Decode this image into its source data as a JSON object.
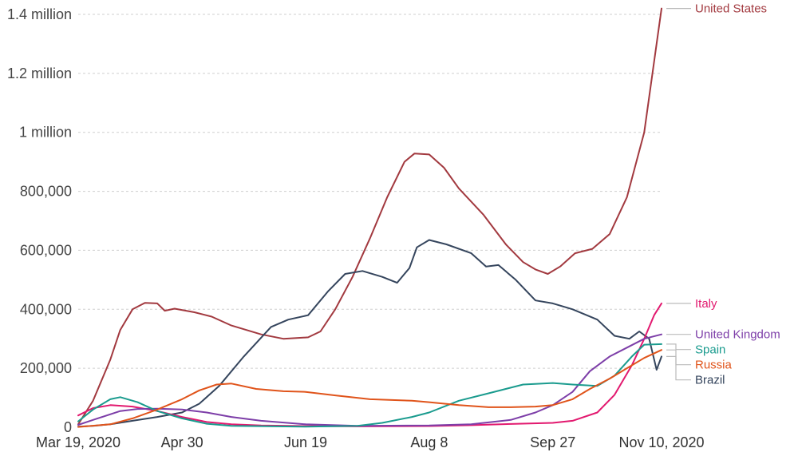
{
  "chart_data": {
    "type": "line",
    "title": "",
    "xlabel": "",
    "ylabel": "",
    "x_start": "2020-03-19",
    "x_end": "2020-11-10",
    "ylim": [
      0,
      1400000
    ],
    "grid": true,
    "yticks": [
      {
        "value": 0,
        "label": "0"
      },
      {
        "value": 200000,
        "label": "200,000"
      },
      {
        "value": 400000,
        "label": "400,000"
      },
      {
        "value": 600000,
        "label": "600,000"
      },
      {
        "value": 800000,
        "label": "800,000"
      },
      {
        "value": 1000000,
        "label": "1 million"
      },
      {
        "value": 1200000,
        "label": "1.2 million"
      },
      {
        "value": 1400000,
        "label": "1.4 million"
      }
    ],
    "xticks": [
      {
        "value": "2020-03-19",
        "label": "Mar 19, 2020"
      },
      {
        "value": "2020-04-30",
        "label": "Apr 30"
      },
      {
        "value": "2020-06-19",
        "label": "Jun 19"
      },
      {
        "value": "2020-08-08",
        "label": "Aug 8"
      },
      {
        "value": "2020-09-27",
        "label": "Sep 27"
      },
      {
        "value": "2020-11-10",
        "label": "Nov 10, 2020"
      }
    ],
    "series": [
      {
        "name": "United States",
        "color": "#a2393f",
        "points": [
          [
            "2020-03-19",
            10000
          ],
          [
            "2020-03-25",
            90000
          ],
          [
            "2020-04-01",
            230000
          ],
          [
            "2020-04-05",
            330000
          ],
          [
            "2020-04-10",
            400000
          ],
          [
            "2020-04-15",
            422000
          ],
          [
            "2020-04-20",
            420000
          ],
          [
            "2020-04-23",
            395000
          ],
          [
            "2020-04-27",
            402000
          ],
          [
            "2020-05-05",
            390000
          ],
          [
            "2020-05-12",
            375000
          ],
          [
            "2020-05-20",
            345000
          ],
          [
            "2020-06-01",
            315000
          ],
          [
            "2020-06-10",
            300000
          ],
          [
            "2020-06-20",
            305000
          ],
          [
            "2020-06-25",
            325000
          ],
          [
            "2020-07-01",
            400000
          ],
          [
            "2020-07-08",
            510000
          ],
          [
            "2020-07-15",
            640000
          ],
          [
            "2020-07-22",
            780000
          ],
          [
            "2020-07-29",
            900000
          ],
          [
            "2020-08-02",
            928000
          ],
          [
            "2020-08-08",
            925000
          ],
          [
            "2020-08-14",
            880000
          ],
          [
            "2020-08-20",
            810000
          ],
          [
            "2020-08-30",
            720000
          ],
          [
            "2020-09-08",
            620000
          ],
          [
            "2020-09-15",
            560000
          ],
          [
            "2020-09-20",
            535000
          ],
          [
            "2020-09-25",
            520000
          ],
          [
            "2020-09-30",
            545000
          ],
          [
            "2020-10-06",
            590000
          ],
          [
            "2020-10-13",
            605000
          ],
          [
            "2020-10-20",
            655000
          ],
          [
            "2020-10-27",
            780000
          ],
          [
            "2020-11-03",
            1000000
          ],
          [
            "2020-11-08",
            1300000
          ],
          [
            "2020-11-10",
            1420000
          ]
        ]
      },
      {
        "name": "Brazil",
        "color": "#35455d",
        "points": [
          [
            "2020-03-19",
            2000
          ],
          [
            "2020-03-25",
            5000
          ],
          [
            "2020-04-01",
            10000
          ],
          [
            "2020-04-10",
            22000
          ],
          [
            "2020-04-20",
            35000
          ],
          [
            "2020-04-30",
            50000
          ],
          [
            "2020-05-07",
            80000
          ],
          [
            "2020-05-15",
            140000
          ],
          [
            "2020-05-25",
            240000
          ],
          [
            "2020-06-05",
            340000
          ],
          [
            "2020-06-12",
            365000
          ],
          [
            "2020-06-20",
            380000
          ],
          [
            "2020-06-28",
            460000
          ],
          [
            "2020-07-05",
            520000
          ],
          [
            "2020-07-12",
            530000
          ],
          [
            "2020-07-20",
            510000
          ],
          [
            "2020-07-26",
            490000
          ],
          [
            "2020-07-31",
            540000
          ],
          [
            "2020-08-03",
            610000
          ],
          [
            "2020-08-08",
            635000
          ],
          [
            "2020-08-15",
            620000
          ],
          [
            "2020-08-25",
            590000
          ],
          [
            "2020-08-31",
            545000
          ],
          [
            "2020-09-05",
            550000
          ],
          [
            "2020-09-12",
            500000
          ],
          [
            "2020-09-20",
            430000
          ],
          [
            "2020-09-27",
            420000
          ],
          [
            "2020-10-05",
            400000
          ],
          [
            "2020-10-15",
            365000
          ],
          [
            "2020-10-22",
            310000
          ],
          [
            "2020-10-28",
            300000
          ],
          [
            "2020-11-01",
            325000
          ],
          [
            "2020-11-05",
            300000
          ],
          [
            "2020-11-08",
            195000
          ],
          [
            "2020-11-10",
            240000
          ]
        ]
      },
      {
        "name": "Italy",
        "color": "#e2196f",
        "points": [
          [
            "2020-03-19",
            40000
          ],
          [
            "2020-03-25",
            65000
          ],
          [
            "2020-04-01",
            75000
          ],
          [
            "2020-04-10",
            70000
          ],
          [
            "2020-04-20",
            55000
          ],
          [
            "2020-04-30",
            35000
          ],
          [
            "2020-05-10",
            18000
          ],
          [
            "2020-05-20",
            10000
          ],
          [
            "2020-06-01",
            6000
          ],
          [
            "2020-06-19",
            4000
          ],
          [
            "2020-07-10",
            3000
          ],
          [
            "2020-08-08",
            4000
          ],
          [
            "2020-08-25",
            7000
          ],
          [
            "2020-09-10",
            11000
          ],
          [
            "2020-09-27",
            15000
          ],
          [
            "2020-10-05",
            22000
          ],
          [
            "2020-10-15",
            50000
          ],
          [
            "2020-10-22",
            110000
          ],
          [
            "2020-10-29",
            210000
          ],
          [
            "2020-11-03",
            300000
          ],
          [
            "2020-11-07",
            380000
          ],
          [
            "2020-11-10",
            420000
          ]
        ]
      },
      {
        "name": "United Kingdom",
        "color": "#7d3ea8",
        "points": [
          [
            "2020-03-19",
            8000
          ],
          [
            "2020-03-25",
            25000
          ],
          [
            "2020-04-05",
            55000
          ],
          [
            "2020-04-12",
            62000
          ],
          [
            "2020-04-20",
            63000
          ],
          [
            "2020-04-30",
            60000
          ],
          [
            "2020-05-10",
            50000
          ],
          [
            "2020-05-20",
            35000
          ],
          [
            "2020-06-01",
            22000
          ],
          [
            "2020-06-19",
            10000
          ],
          [
            "2020-07-10",
            5000
          ],
          [
            "2020-08-08",
            6000
          ],
          [
            "2020-08-25",
            10000
          ],
          [
            "2020-09-10",
            25000
          ],
          [
            "2020-09-20",
            50000
          ],
          [
            "2020-09-27",
            75000
          ],
          [
            "2020-10-05",
            120000
          ],
          [
            "2020-10-12",
            190000
          ],
          [
            "2020-10-20",
            240000
          ],
          [
            "2020-10-27",
            270000
          ],
          [
            "2020-11-03",
            300000
          ],
          [
            "2020-11-10",
            315000
          ]
        ]
      },
      {
        "name": "Spain",
        "color": "#1a9b8e",
        "points": [
          [
            "2020-03-19",
            20000
          ],
          [
            "2020-03-25",
            60000
          ],
          [
            "2020-04-01",
            95000
          ],
          [
            "2020-04-05",
            102000
          ],
          [
            "2020-04-12",
            85000
          ],
          [
            "2020-04-20",
            55000
          ],
          [
            "2020-04-30",
            30000
          ],
          [
            "2020-05-10",
            12000
          ],
          [
            "2020-05-20",
            5000
          ],
          [
            "2020-06-19",
            2000
          ],
          [
            "2020-07-10",
            5000
          ],
          [
            "2020-07-20",
            15000
          ],
          [
            "2020-08-01",
            35000
          ],
          [
            "2020-08-08",
            50000
          ],
          [
            "2020-08-20",
            90000
          ],
          [
            "2020-09-01",
            115000
          ],
          [
            "2020-09-15",
            145000
          ],
          [
            "2020-09-27",
            150000
          ],
          [
            "2020-10-05",
            145000
          ],
          [
            "2020-10-15",
            140000
          ],
          [
            "2020-10-22",
            175000
          ],
          [
            "2020-10-29",
            240000
          ],
          [
            "2020-11-03",
            280000
          ],
          [
            "2020-11-10",
            282000
          ]
        ]
      },
      {
        "name": "Russia",
        "color": "#e0541b",
        "points": [
          [
            "2020-03-19",
            1000
          ],
          [
            "2020-04-01",
            10000
          ],
          [
            "2020-04-10",
            30000
          ],
          [
            "2020-04-20",
            60000
          ],
          [
            "2020-04-30",
            95000
          ],
          [
            "2020-05-07",
            125000
          ],
          [
            "2020-05-14",
            145000
          ],
          [
            "2020-05-20",
            148000
          ],
          [
            "2020-05-30",
            130000
          ],
          [
            "2020-06-10",
            122000
          ],
          [
            "2020-06-19",
            120000
          ],
          [
            "2020-07-01",
            108000
          ],
          [
            "2020-07-15",
            95000
          ],
          [
            "2020-08-01",
            90000
          ],
          [
            "2020-08-08",
            85000
          ],
          [
            "2020-08-20",
            75000
          ],
          [
            "2020-09-01",
            68000
          ],
          [
            "2020-09-10",
            68000
          ],
          [
            "2020-09-20",
            70000
          ],
          [
            "2020-09-27",
            75000
          ],
          [
            "2020-10-05",
            95000
          ],
          [
            "2020-10-12",
            130000
          ],
          [
            "2020-10-20",
            165000
          ],
          [
            "2020-10-27",
            200000
          ],
          [
            "2020-11-03",
            235000
          ],
          [
            "2020-11-10",
            262000
          ]
        ]
      }
    ]
  }
}
